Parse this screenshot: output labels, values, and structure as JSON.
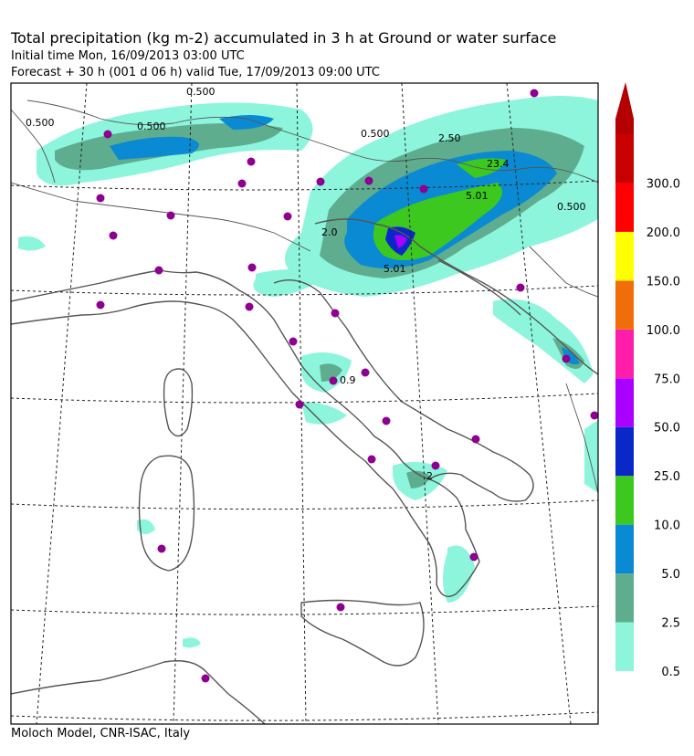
{
  "header": {
    "title": "Total precipitation (kg m-2) accumulated in   3 h at Ground or water surface",
    "initial_time": "Initial time  Mon, 16/09/2013  03:00 UTC",
    "forecast": "Forecast  + 30 h   (001 d 06 h)   valid Tue, 17/09/2013 09:00 UTC"
  },
  "footer": {
    "credit": "Moloch Model, CNR-ISAC, Italy"
  },
  "map": {
    "contour_labels": [
      "0.500",
      "0.500",
      "0.500",
      "23.4",
      "5.01",
      "2.0",
      "2.50",
      "0.500",
      "0.500",
      "0.9",
      "2",
      "5.01"
    ]
  },
  "legend": {
    "bins": [
      {
        "label": "0.5",
        "color": "#8cf5dc"
      },
      {
        "label": "2.5",
        "color": "#5fad8f"
      },
      {
        "label": "5.0",
        "color": "#0a8ad2"
      },
      {
        "label": "10.0",
        "color": "#3cc81e"
      },
      {
        "label": "25.0",
        "color": "#0a28c8"
      },
      {
        "label": "50.0",
        "color": "#aa00ff"
      },
      {
        "label": "75.0",
        "color": "#ff1eaa"
      },
      {
        "label": "100.0",
        "color": "#f06e0a"
      },
      {
        "label": "150.0",
        "color": "#ffff00"
      },
      {
        "label": "200.0",
        "color": "#ff0000"
      },
      {
        "label": "300.0",
        "color": "#c80000"
      }
    ],
    "top_color": "#b40000"
  },
  "colors": {
    "station": "#900090",
    "coast": "#555555",
    "grid": "#222222"
  }
}
